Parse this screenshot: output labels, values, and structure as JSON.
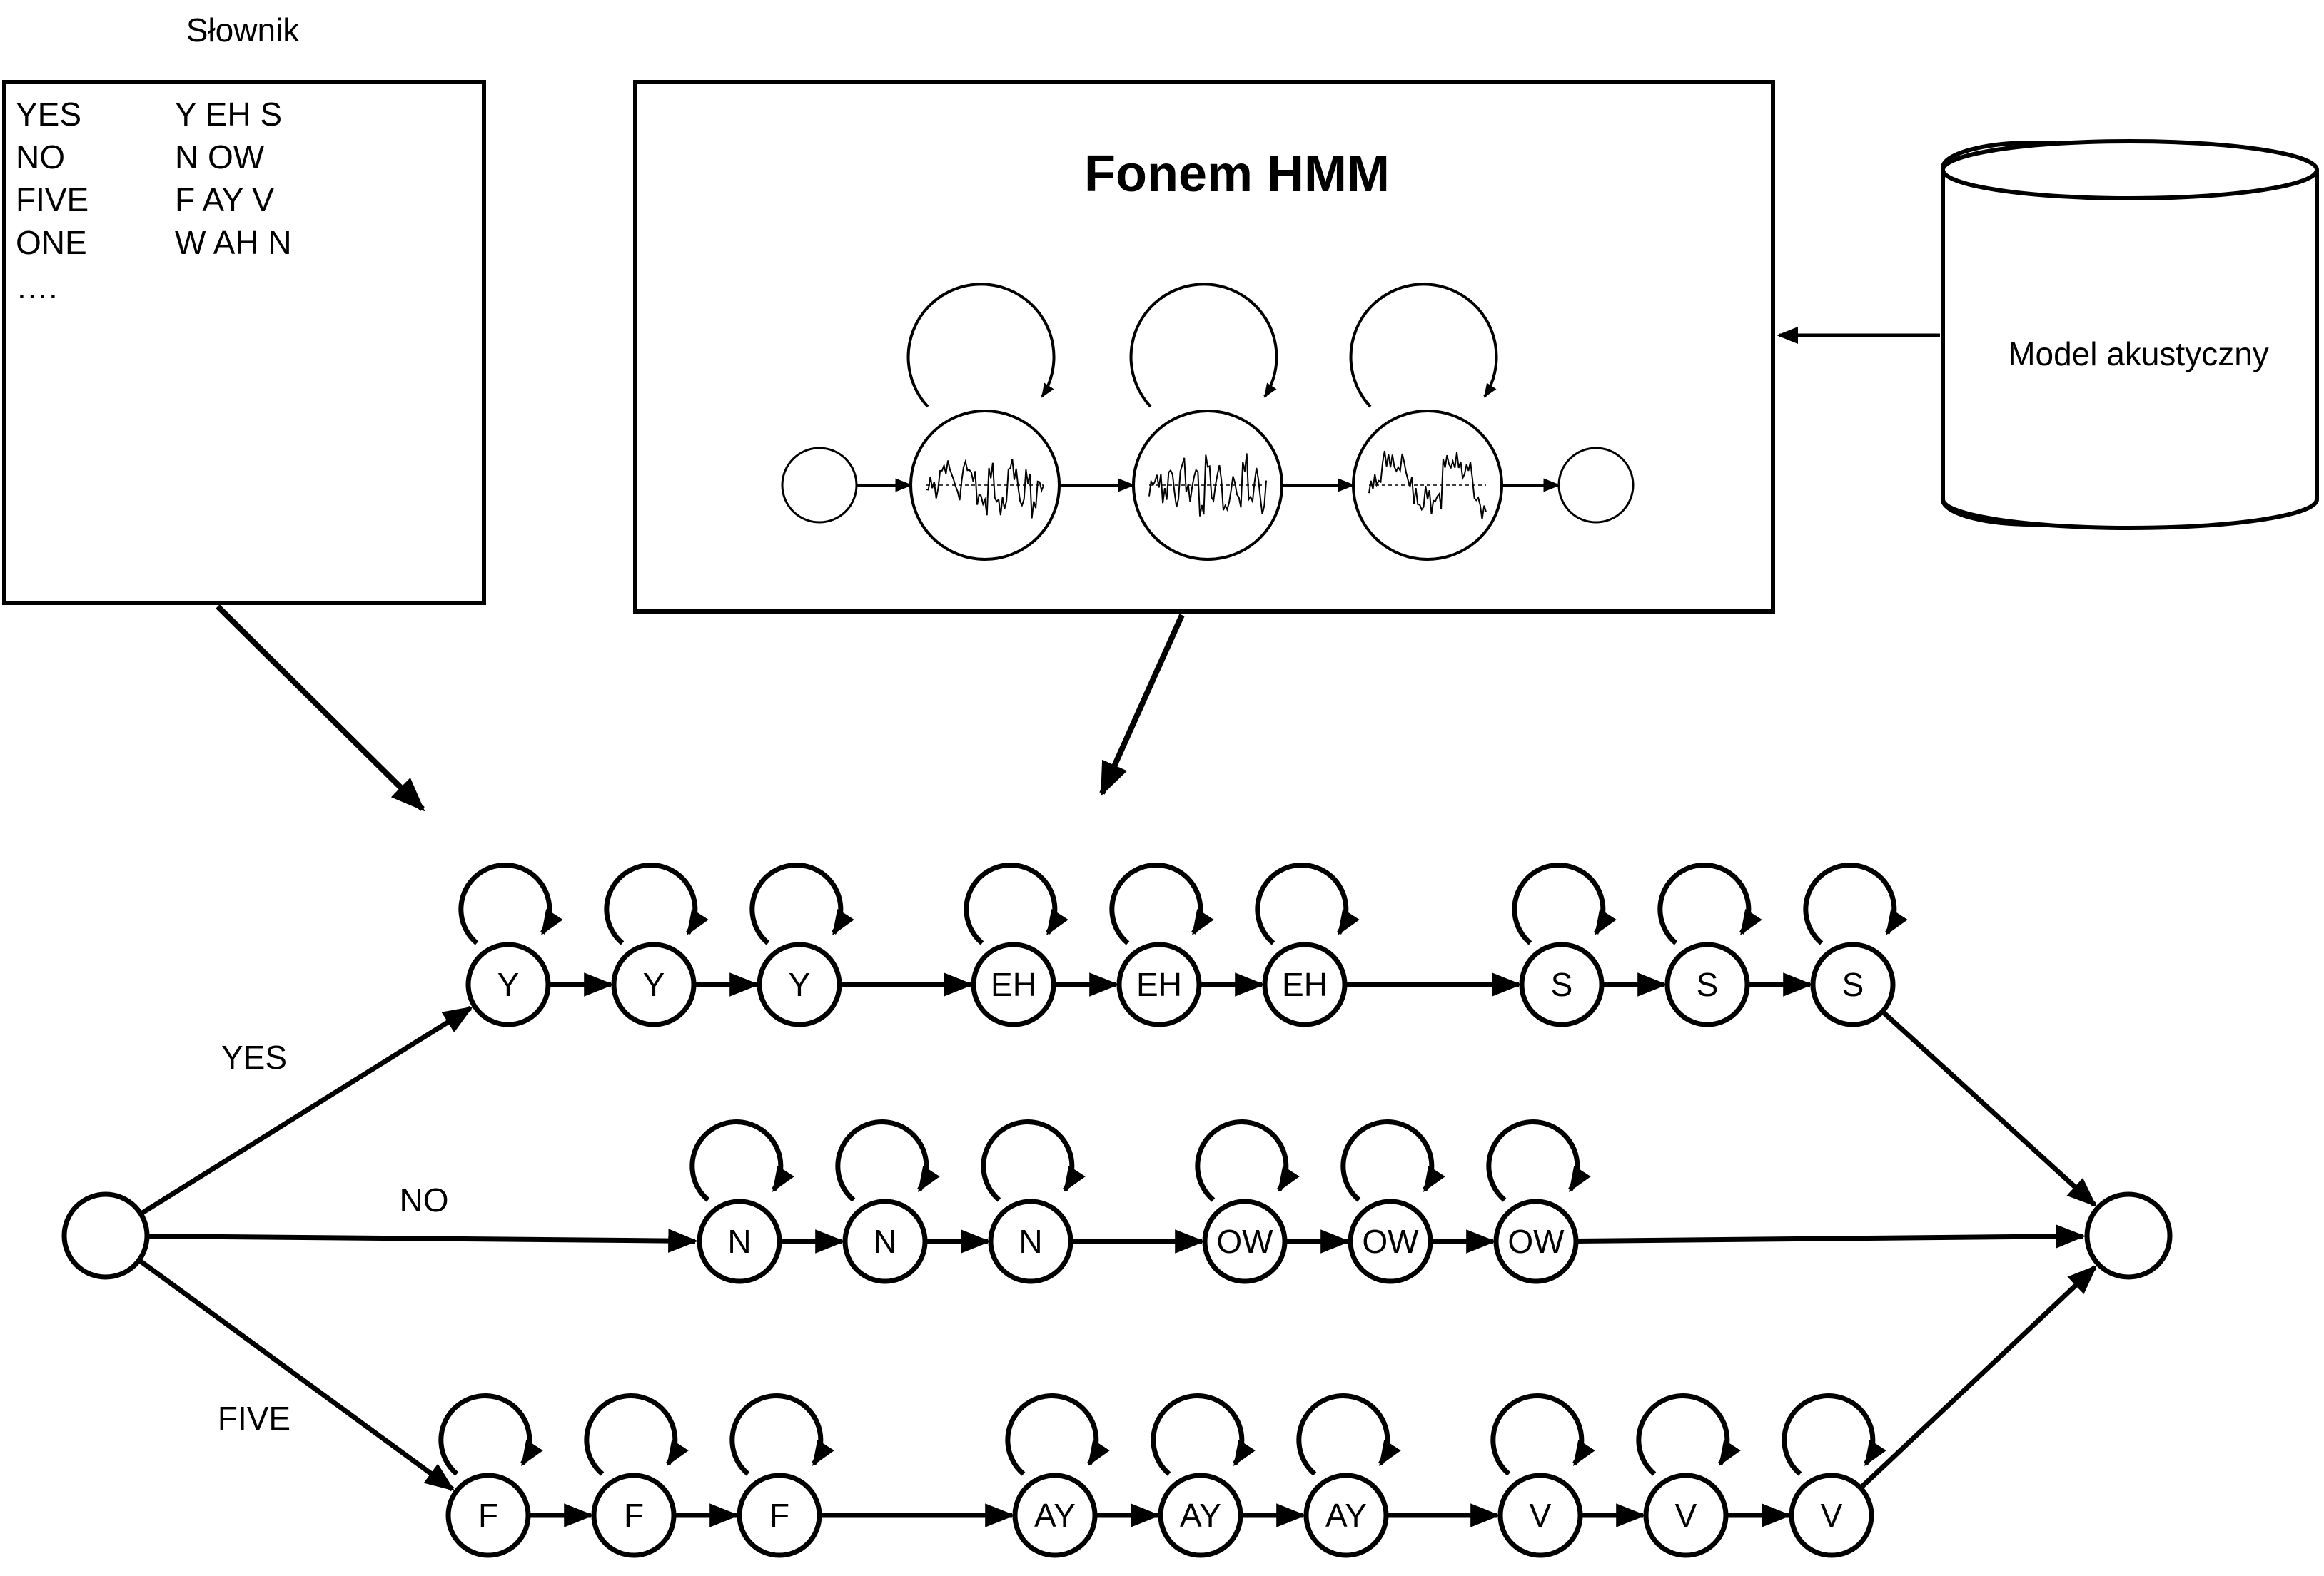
{
  "dictionary": {
    "title": "Słownik",
    "entries": [
      {
        "word": "YES",
        "phones": "Y EH S"
      },
      {
        "word": "NO",
        "phones": "N OW"
      },
      {
        "word": "FIVE",
        "phones": "F AY V"
      },
      {
        "word": "ONE",
        "phones": "W AH N"
      }
    ],
    "ellipsis": "…."
  },
  "phone_hmm": {
    "title": "Fonem HMM",
    "emitting_states": 3
  },
  "acoustic_model": {
    "label": "Model akustyczny"
  },
  "network": {
    "paths": [
      {
        "word": "YES",
        "phones": [
          "Y",
          "EH",
          "S"
        ]
      },
      {
        "word": "NO",
        "phones": [
          "N",
          "OW"
        ]
      },
      {
        "word": "FIVE",
        "phones": [
          "F",
          "AY",
          "V"
        ]
      }
    ],
    "states_per_phone": 3
  }
}
